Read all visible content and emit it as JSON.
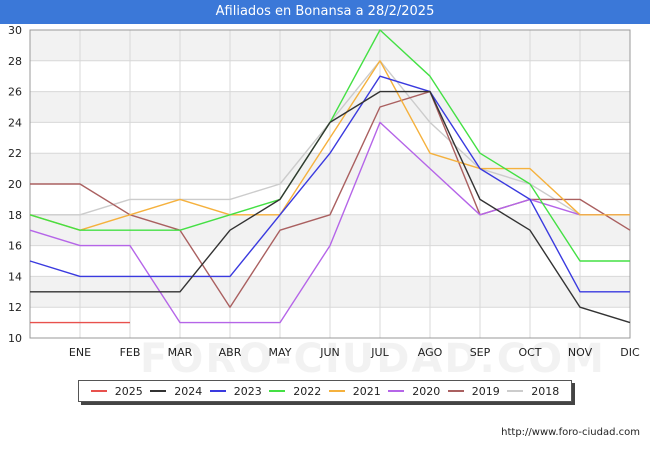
{
  "title": "Afiliados en Bonansa a 28/2/2025",
  "source": "http://www.foro-ciudad.com",
  "watermark": "FORO-CIUDAD.COM",
  "chart_data": {
    "type": "line",
    "title": "Afiliados en Bonansa a 28/2/2025",
    "categories": [
      "",
      "ENE",
      "FEB",
      "MAR",
      "ABR",
      "MAY",
      "JUN",
      "JUL",
      "AGO",
      "SEP",
      "OCT",
      "NOV",
      "DIC"
    ],
    "ylim": [
      10,
      30
    ],
    "yticks": [
      10,
      12,
      14,
      16,
      18,
      20,
      22,
      24,
      26,
      28,
      30
    ],
    "grid": true,
    "legend_position": "bottom",
    "series": [
      {
        "name": "2025",
        "color": "#e8514d",
        "values": [
          11,
          11,
          11,
          null,
          null,
          null,
          null,
          null,
          null,
          null,
          null,
          null,
          null
        ]
      },
      {
        "name": "2024",
        "color": "#333333",
        "values": [
          13,
          13,
          13,
          13,
          17,
          19,
          24,
          26,
          26,
          19,
          17,
          12,
          11
        ]
      },
      {
        "name": "2023",
        "color": "#3a3adf",
        "values": [
          15,
          14,
          14,
          14,
          14,
          18,
          22,
          27,
          26,
          21,
          19,
          13,
          13
        ]
      },
      {
        "name": "2022",
        "color": "#44e044",
        "values": [
          18,
          17,
          17,
          17,
          18,
          19,
          24,
          30,
          27,
          22,
          20,
          15,
          15
        ]
      },
      {
        "name": "2021",
        "color": "#f5b13d",
        "values": [
          18,
          17,
          18,
          19,
          18,
          18,
          23,
          28,
          22,
          21,
          21,
          18,
          18
        ]
      },
      {
        "name": "2020",
        "color": "#b565e8",
        "values": [
          17,
          16,
          16,
          11,
          11,
          11,
          16,
          24,
          21,
          18,
          19,
          18,
          18
        ]
      },
      {
        "name": "2019",
        "color": "#aa6060",
        "values": [
          20,
          20,
          18,
          17,
          12,
          17,
          18,
          25,
          26,
          18,
          19,
          19,
          17
        ]
      },
      {
        "name": "2018",
        "color": "#cccccc",
        "values": [
          18,
          18,
          19,
          19,
          19,
          20,
          24,
          28,
          24,
          21,
          20,
          18,
          18
        ]
      }
    ]
  }
}
